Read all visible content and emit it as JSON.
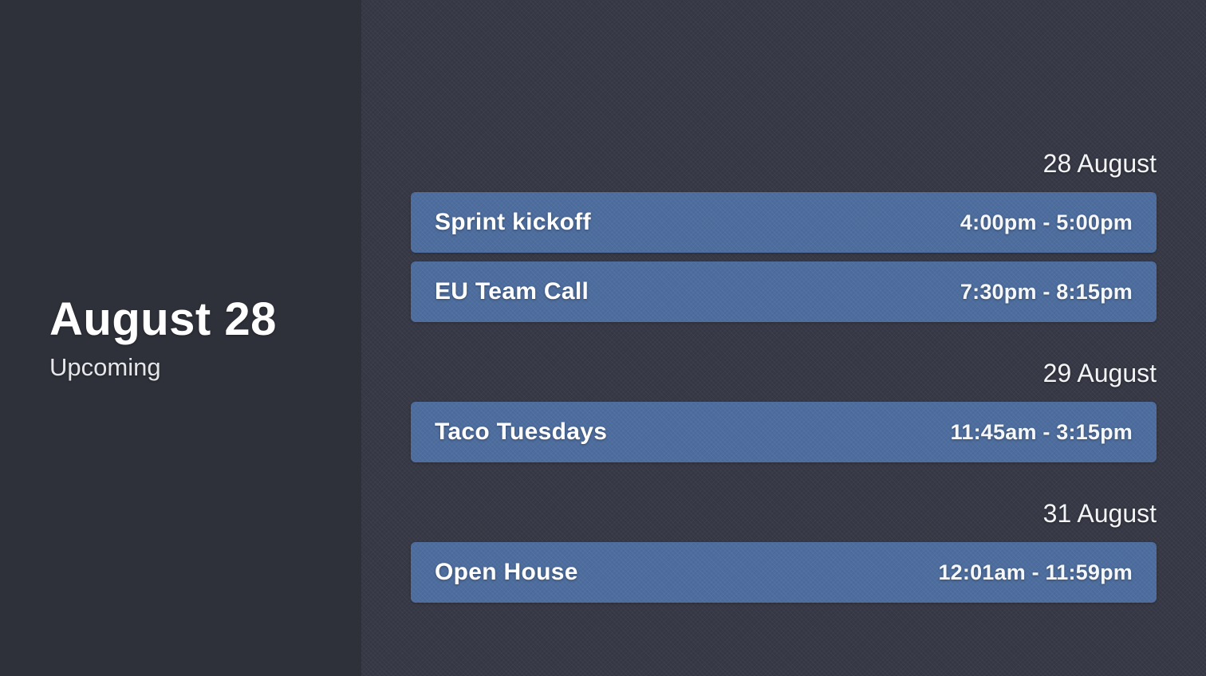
{
  "sidebar": {
    "date_title": "August 28",
    "subtitle": "Upcoming"
  },
  "agenda": {
    "days": [
      {
        "date_label": "28 August",
        "events": [
          {
            "title": "Sprint kickoff",
            "time": "4:00pm - 5:00pm"
          },
          {
            "title": "EU Team Call",
            "time": "7:30pm - 8:15pm"
          }
        ]
      },
      {
        "date_label": "29 August",
        "events": [
          {
            "title": "Taco Tuesdays",
            "time": "11:45am - 3:15pm"
          }
        ]
      },
      {
        "date_label": "31 August",
        "events": [
          {
            "title": "Open House",
            "time": "12:01am - 11:59pm"
          }
        ]
      }
    ]
  },
  "colors": {
    "left_panel_bg": "#2f313a",
    "right_panel_bg": "#353744",
    "event_bar": "#4b6b9c",
    "text": "#ffffff"
  }
}
